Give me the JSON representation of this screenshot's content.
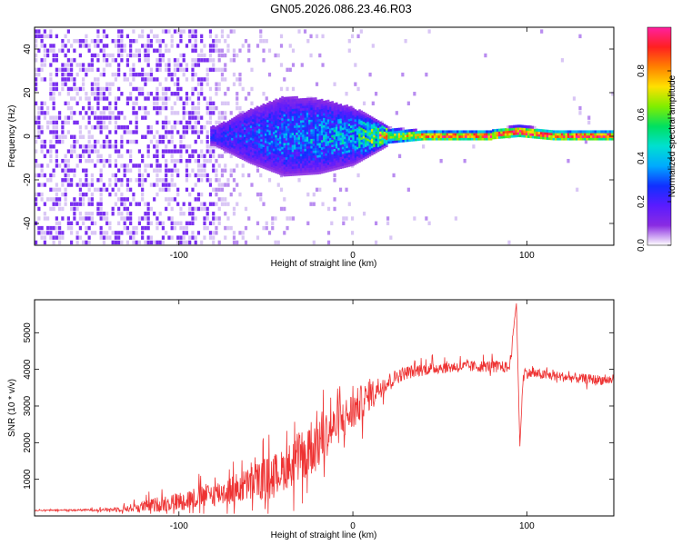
{
  "title": "GN05.2026.086.23.46.R03",
  "chart_data": [
    {
      "type": "heatmap",
      "name": "spectrogram",
      "xlabel": "Height of straight line (km)",
      "ylabel": "Frequency (Hz)",
      "xlim": [
        -183,
        150
      ],
      "ylim": [
        -50,
        50
      ],
      "xticks": [
        -100,
        0,
        100
      ],
      "yticks": [
        -40,
        -20,
        0,
        20,
        40
      ],
      "colorbar": {
        "label": "Normalized spectral amplitude",
        "range": [
          0.0,
          1.0
        ],
        "ticks": [
          0.0,
          0.2,
          0.4,
          0.6,
          0.8
        ],
        "colors": [
          "#ffffff",
          "#8a2be2",
          "#5a1bff",
          "#1030ff",
          "#00aaff",
          "#00e0d0",
          "#00e060",
          "#80ee00",
          "#ffe000",
          "#ff8000",
          "#ff2020",
          "#ff20a0"
        ]
      },
      "noise_scatter": {
        "x_range": [
          -183,
          -60
        ],
        "freq_range": [
          -50,
          50
        ],
        "amplitude": 0.05
      },
      "band": {
        "points": [
          {
            "x": -80,
            "halfwidth": 4,
            "amplitude": 0.12
          },
          {
            "x": -60,
            "halfwidth": 12,
            "amplitude": 0.15
          },
          {
            "x": -40,
            "halfwidth": 18,
            "amplitude": 0.18
          },
          {
            "x": -20,
            "halfwidth": 17,
            "amplitude": 0.2
          },
          {
            "x": 0,
            "halfwidth": 13,
            "amplitude": 0.22
          },
          {
            "x": 20,
            "halfwidth": 4,
            "amplitude": 0.55
          },
          {
            "x": 40,
            "halfwidth": 2.5,
            "amplitude": 0.8
          },
          {
            "x": 80,
            "halfwidth": 2.5,
            "amplitude": 0.85
          },
          {
            "x": 95,
            "halfwidth": 3,
            "amplitude": 0.9
          },
          {
            "x": 115,
            "halfwidth": 2.5,
            "amplitude": 0.85
          },
          {
            "x": 150,
            "halfwidth": 2.5,
            "amplitude": 0.9
          }
        ],
        "center_freq": [
          {
            "x": 80,
            "freq": 0.5
          },
          {
            "x": 95,
            "freq": 2
          },
          {
            "x": 115,
            "freq": 0
          }
        ]
      }
    },
    {
      "type": "line",
      "name": "snr",
      "xlabel": "Height of straight line (km)",
      "ylabel": "SNR (10 * v/v)",
      "xlim": [
        -183,
        150
      ],
      "ylim": [
        0,
        5900
      ],
      "xticks": [
        -100,
        0,
        100
      ],
      "yticks": [
        1000,
        2000,
        3000,
        4000,
        5000
      ],
      "series": [
        {
          "name": "SNR",
          "color": "#ee3333",
          "x": [
            -183,
            -170,
            -160,
            -150,
            -140,
            -130,
            -120,
            -110,
            -100,
            -90,
            -80,
            -70,
            -60,
            -50,
            -40,
            -35,
            -30,
            -25,
            -20,
            -15,
            -10,
            -5,
            0,
            5,
            10,
            15,
            20,
            25,
            30,
            40,
            50,
            60,
            70,
            80,
            90,
            94,
            96,
            98,
            100,
            110,
            120,
            130,
            140,
            150
          ],
          "values": [
            150,
            155,
            160,
            165,
            175,
            200,
            260,
            330,
            400,
            500,
            600,
            700,
            850,
            1050,
            1250,
            1450,
            1650,
            1850,
            2050,
            2250,
            2450,
            2650,
            2850,
            3100,
            3300,
            3500,
            3650,
            3800,
            3900,
            4000,
            4050,
            4070,
            4080,
            4090,
            4050,
            5800,
            1900,
            3950,
            3900,
            3850,
            3800,
            3750,
            3720,
            3700
          ],
          "noise": [
            20,
            25,
            30,
            40,
            60,
            120,
            200,
            280,
            320,
            380,
            420,
            500,
            600,
            700,
            700,
            800,
            900,
            1000,
            1100,
            800,
            700,
            700,
            700,
            600,
            500,
            400,
            300,
            260,
            230,
            220,
            210,
            200,
            200,
            200,
            200,
            0,
            0,
            200,
            180,
            170,
            170,
            170,
            170,
            170
          ]
        }
      ]
    }
  ]
}
